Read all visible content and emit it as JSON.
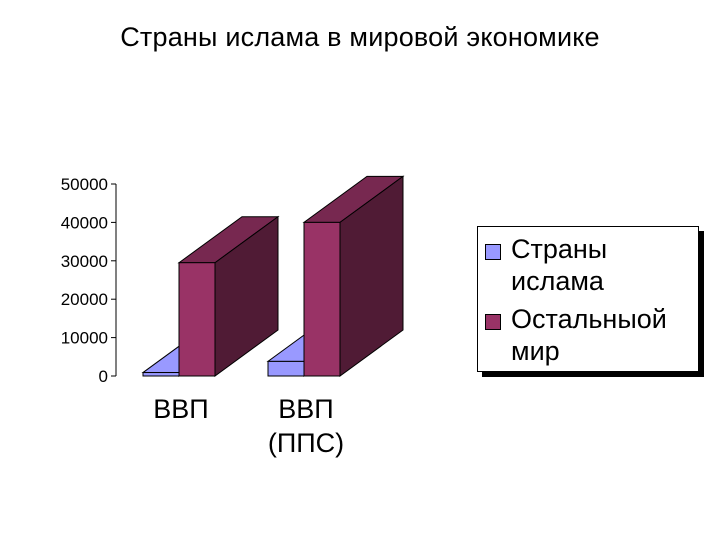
{
  "slide": {
    "title": "Страны ислама в мировой экономике"
  },
  "chart_data": {
    "type": "bar",
    "style": "3d-column",
    "categories": [
      "ВВП",
      "ВВП\n(ППС)"
    ],
    "series": [
      {
        "name": "Страны ислама",
        "values": [
          900,
          3800
        ],
        "color": "#9999ff"
      },
      {
        "name": "Остальныой мир",
        "values": [
          29500,
          40000
        ],
        "color": "#993366"
      }
    ],
    "yticks": [
      "0",
      "10000",
      "20000",
      "30000",
      "40000",
      "50000"
    ],
    "ylim": [
      0,
      50000
    ],
    "grid": false,
    "legend": "right"
  }
}
